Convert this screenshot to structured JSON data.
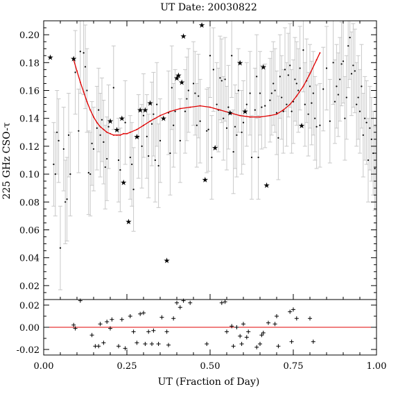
{
  "chart_data": {
    "type": "scatter",
    "title": "UT Date: 20030822",
    "xlabel": "UT (Fraction of Day)",
    "ylabel": "225 GHz CSO-τ",
    "xlim": [
      0.0,
      1.0
    ],
    "ylim_main": [
      0.01,
      0.21
    ],
    "ylim_residual": [
      -0.025,
      0.025
    ],
    "x_ticks": [
      "0.00",
      "0.25",
      "0.50",
      "0.75",
      "1.00"
    ],
    "y_ticks_main": [
      "0.02",
      "0.04",
      "0.06",
      "0.08",
      "0.10",
      "0.12",
      "0.14",
      "0.16",
      "0.18",
      "0.20"
    ],
    "y_ticks_residual": [
      "-0.02",
      "0.00",
      "0.02"
    ],
    "colors": {
      "fit": "#e00000",
      "errorbar": "#c8c8c8",
      "points": "#000000",
      "zero_line": "#e00000"
    },
    "series": [
      {
        "marker": "star",
        "points": [
          [
            0.02,
            0.184
          ],
          [
            0.09,
            0.183
          ],
          [
            0.2,
            0.138
          ],
          [
            0.22,
            0.132
          ],
          [
            0.235,
            0.14
          ],
          [
            0.24,
            0.094
          ],
          [
            0.255,
            0.066
          ],
          [
            0.28,
            0.127
          ],
          [
            0.29,
            0.146
          ],
          [
            0.305,
            0.146
          ],
          [
            0.32,
            0.151
          ],
          [
            0.36,
            0.14
          ],
          [
            0.37,
            0.038
          ],
          [
            0.4,
            0.169
          ],
          [
            0.405,
            0.171
          ],
          [
            0.415,
            0.166
          ],
          [
            0.42,
            0.199
          ],
          [
            0.475,
            0.207
          ],
          [
            0.485,
            0.096
          ],
          [
            0.515,
            0.119
          ],
          [
            0.56,
            0.144
          ],
          [
            0.59,
            0.18
          ],
          [
            0.605,
            0.145
          ],
          [
            0.66,
            0.177
          ],
          [
            0.67,
            0.092
          ],
          [
            0.775,
            0.135
          ]
        ]
      },
      {
        "marker": "dot",
        "errorbar": 0.03,
        "points": [
          [
            0.03,
            0.107
          ],
          [
            0.035,
            0.1
          ],
          [
            0.04,
            0.13
          ],
          [
            0.045,
            0.124
          ],
          [
            0.05,
            0.047
          ],
          [
            0.06,
            0.118
          ],
          [
            0.065,
            0.08
          ],
          [
            0.07,
            0.082
          ],
          [
            0.075,
            0.128
          ],
          [
            0.08,
            0.1
          ],
          [
            0.095,
            0.173
          ],
          [
            0.105,
            0.131
          ],
          [
            0.11,
            0.188
          ],
          [
            0.12,
            0.187
          ],
          [
            0.125,
            0.177
          ],
          [
            0.13,
            0.16
          ],
          [
            0.135,
            0.101
          ],
          [
            0.14,
            0.1
          ],
          [
            0.145,
            0.122
          ],
          [
            0.15,
            0.118
          ],
          [
            0.16,
            0.133
          ],
          [
            0.165,
            0.146
          ],
          [
            0.17,
            0.128
          ],
          [
            0.175,
            0.139
          ],
          [
            0.18,
            0.123
          ],
          [
            0.185,
            0.105
          ],
          [
            0.19,
            0.111
          ],
          [
            0.195,
            0.134
          ],
          [
            0.21,
            0.162
          ],
          [
            0.225,
            0.11
          ],
          [
            0.23,
            0.103
          ],
          [
            0.245,
            0.137
          ],
          [
            0.26,
            0.112
          ],
          [
            0.265,
            0.107
          ],
          [
            0.27,
            0.089
          ],
          [
            0.285,
            0.127
          ],
          [
            0.295,
            0.12
          ],
          [
            0.3,
            0.142
          ],
          [
            0.31,
            0.127
          ],
          [
            0.315,
            0.113
          ],
          [
            0.325,
            0.136
          ],
          [
            0.33,
            0.143
          ],
          [
            0.335,
            0.11
          ],
          [
            0.34,
            0.15
          ],
          [
            0.345,
            0.106
          ],
          [
            0.35,
            0.124
          ],
          [
            0.375,
            0.144
          ],
          [
            0.38,
            0.115
          ],
          [
            0.385,
            0.162
          ],
          [
            0.39,
            0.135
          ],
          [
            0.395,
            0.145
          ],
          [
            0.41,
            0.124
          ],
          [
            0.425,
            0.145
          ],
          [
            0.43,
            0.154
          ],
          [
            0.435,
            0.16
          ],
          [
            0.45,
            0.165
          ],
          [
            0.455,
            0.158
          ],
          [
            0.46,
            0.135
          ],
          [
            0.465,
            0.156
          ],
          [
            0.47,
            0.138
          ],
          [
            0.49,
            0.131
          ],
          [
            0.495,
            0.132
          ],
          [
            0.5,
            0.185
          ],
          [
            0.505,
            0.112
          ],
          [
            0.51,
            0.175
          ],
          [
            0.52,
            0.15
          ],
          [
            0.525,
            0.146
          ],
          [
            0.53,
            0.169
          ],
          [
            0.535,
            0.167
          ],
          [
            0.54,
            0.14
          ],
          [
            0.545,
            0.168
          ],
          [
            0.55,
            0.133
          ],
          [
            0.555,
            0.148
          ],
          [
            0.565,
            0.185
          ],
          [
            0.57,
            0.116
          ],
          [
            0.575,
            0.134
          ],
          [
            0.58,
            0.128
          ],
          [
            0.585,
            0.16
          ],
          [
            0.595,
            0.13
          ],
          [
            0.6,
            0.137
          ],
          [
            0.61,
            0.15
          ],
          [
            0.62,
            0.158
          ],
          [
            0.625,
            0.112
          ],
          [
            0.635,
            0.146
          ],
          [
            0.64,
            0.17
          ],
          [
            0.645,
            0.112
          ],
          [
            0.65,
            0.158
          ],
          [
            0.655,
            0.148
          ],
          [
            0.665,
            0.149
          ],
          [
            0.68,
            0.153
          ],
          [
            0.685,
            0.158
          ],
          [
            0.69,
            0.165
          ],
          [
            0.695,
            0.16
          ],
          [
            0.7,
            0.144
          ],
          [
            0.705,
            0.126
          ],
          [
            0.71,
            0.17
          ],
          [
            0.715,
            0.155
          ],
          [
            0.72,
            0.145
          ],
          [
            0.725,
            0.175
          ],
          [
            0.73,
            0.15
          ],
          [
            0.735,
            0.171
          ],
          [
            0.74,
            0.178
          ],
          [
            0.745,
            0.145
          ],
          [
            0.75,
            0.152
          ],
          [
            0.755,
            0.168
          ],
          [
            0.76,
            0.165
          ],
          [
            0.765,
            0.16
          ],
          [
            0.77,
            0.176
          ],
          [
            0.78,
            0.189
          ],
          [
            0.785,
            0.15
          ],
          [
            0.79,
            0.167
          ],
          [
            0.795,
            0.143
          ],
          [
            0.8,
            0.163
          ],
          [
            0.805,
            0.151
          ],
          [
            0.81,
            0.158
          ],
          [
            0.815,
            0.14
          ],
          [
            0.82,
            0.134
          ],
          [
            0.83,
            0.135
          ],
          [
            0.84,
            0.161
          ],
          [
            0.85,
            0.176
          ],
          [
            0.86,
            0.138
          ],
          [
            0.87,
            0.18
          ],
          [
            0.875,
            0.152
          ],
          [
            0.88,
            0.163
          ],
          [
            0.885,
            0.157
          ],
          [
            0.89,
            0.168
          ],
          [
            0.895,
            0.179
          ],
          [
            0.9,
            0.181
          ],
          [
            0.905,
            0.14
          ],
          [
            0.91,
            0.155
          ],
          [
            0.915,
            0.192
          ],
          [
            0.92,
            0.198
          ],
          [
            0.925,
            0.172
          ],
          [
            0.93,
            0.178
          ],
          [
            0.935,
            0.174
          ],
          [
            0.94,
            0.15
          ],
          [
            0.945,
            0.155
          ],
          [
            0.95,
            0.145
          ],
          [
            0.955,
            0.163
          ],
          [
            0.96,
            0.128
          ],
          [
            0.965,
            0.14
          ],
          [
            0.97,
            0.137
          ],
          [
            0.975,
            0.11
          ],
          [
            0.98,
            0.133
          ],
          [
            0.985,
            0.125
          ],
          [
            0.99,
            0.115
          ],
          [
            0.995,
            0.104
          ]
        ]
      }
    ],
    "fit_curve": {
      "x": [
        0.09,
        0.1,
        0.11,
        0.12,
        0.13,
        0.14,
        0.15,
        0.16,
        0.17,
        0.18,
        0.19,
        0.2,
        0.21,
        0.22,
        0.23,
        0.24,
        0.25,
        0.26,
        0.28,
        0.3,
        0.32,
        0.35,
        0.38,
        0.41,
        0.44,
        0.47,
        0.5,
        0.53,
        0.56,
        0.59,
        0.62,
        0.65,
        0.68,
        0.7,
        0.72,
        0.74,
        0.76,
        0.78,
        0.8,
        0.82,
        0.83
      ],
      "y": [
        0.182,
        0.174,
        0.166,
        0.159,
        0.152,
        0.146,
        0.141,
        0.137,
        0.134,
        0.132,
        0.13,
        0.129,
        0.128,
        0.128,
        0.128,
        0.129,
        0.129,
        0.13,
        0.132,
        0.135,
        0.138,
        0.142,
        0.145,
        0.147,
        0.148,
        0.149,
        0.148,
        0.146,
        0.144,
        0.142,
        0.141,
        0.141,
        0.142,
        0.143,
        0.146,
        0.15,
        0.156,
        0.163,
        0.172,
        0.182,
        0.187
      ]
    },
    "residuals": {
      "x": [
        0.09,
        0.095,
        0.11,
        0.145,
        0.155,
        0.165,
        0.17,
        0.18,
        0.19,
        0.2,
        0.205,
        0.225,
        0.235,
        0.245,
        0.26,
        0.27,
        0.28,
        0.29,
        0.3,
        0.305,
        0.315,
        0.325,
        0.33,
        0.345,
        0.355,
        0.37,
        0.375,
        0.39,
        0.4,
        0.41,
        0.42,
        0.44,
        0.49,
        0.535,
        0.545,
        0.55,
        0.565,
        0.57,
        0.58,
        0.59,
        0.595,
        0.6,
        0.61,
        0.615,
        0.64,
        0.65,
        0.655,
        0.66,
        0.675,
        0.695,
        0.7,
        0.705,
        0.74,
        0.745,
        0.75,
        0.76,
        0.8,
        0.81
      ],
      "y": [
        0.002,
        -0.001,
        0.024,
        -0.007,
        -0.017,
        -0.017,
        0.003,
        -0.014,
        0.005,
        -0.001,
        0.007,
        -0.017,
        0.007,
        -0.019,
        0.01,
        -0.004,
        -0.014,
        0.012,
        0.013,
        -0.015,
        -0.004,
        -0.015,
        -0.003,
        -0.015,
        0.009,
        -0.004,
        -0.016,
        0.008,
        0.022,
        0.018,
        0.024,
        0.022,
        -0.015,
        0.022,
        0.023,
        -0.004,
        0.001,
        -0.017,
        0.0,
        -0.008,
        -0.015,
        0.003,
        -0.009,
        -0.004,
        -0.018,
        -0.015,
        -0.007,
        -0.005,
        0.004,
        0.003,
        0.01,
        -0.017,
        0.014,
        -0.013,
        0.016,
        0.008,
        0.008,
        -0.013
      ]
    }
  }
}
